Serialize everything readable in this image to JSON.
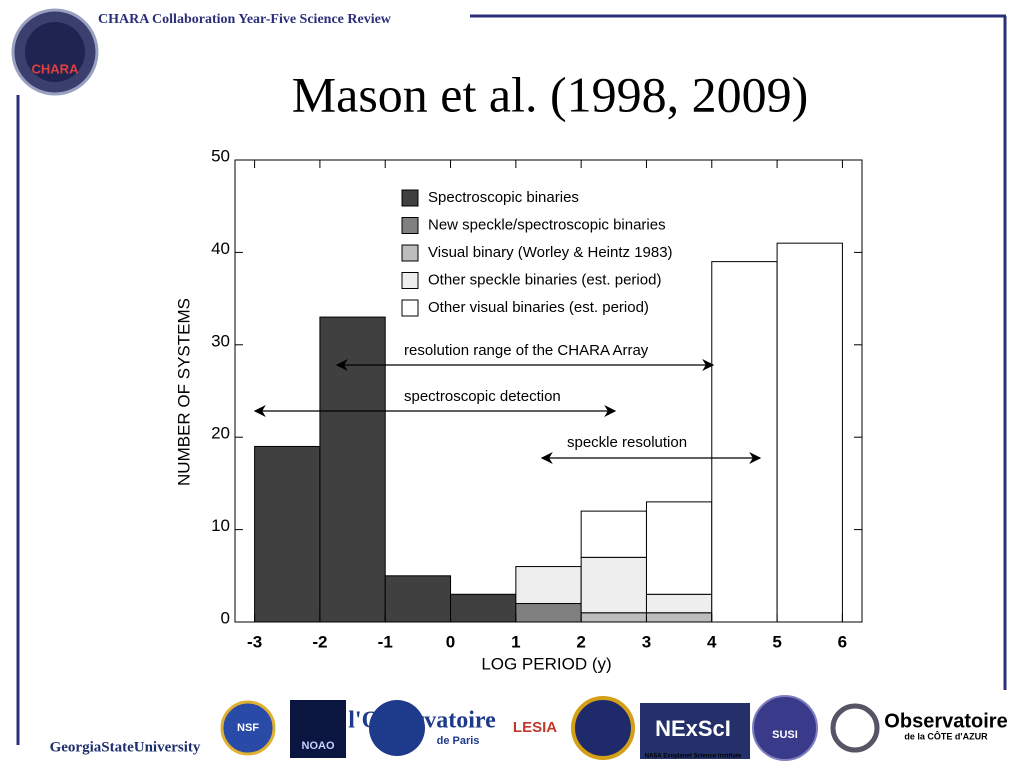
{
  "header": {
    "text": "CHARA Collaboration Year-Five Science Review",
    "logo_text": "CHARA"
  },
  "chart_data": {
    "type": "histogram",
    "title": "Mason et al. (1998, 2009)",
    "x_label": "LOG PERIOD (y)",
    "y_label": "NUMBER OF SYSTEMS",
    "bins": [
      -3,
      -2,
      -1,
      0,
      1,
      2,
      3,
      4,
      5,
      6
    ],
    "stacked": true,
    "series": [
      {
        "name": "Spectroscopic binaries",
        "color": "#404040",
        "values": [
          19,
          33,
          5,
          3,
          0,
          0,
          0,
          0,
          0
        ]
      },
      {
        "name": "New speckle/spectroscopic binaries",
        "color": "#808080",
        "values": [
          0,
          0,
          0,
          0,
          2,
          0,
          0,
          0,
          0
        ]
      },
      {
        "name": "Visual binary (Worley & Heintz 1983)",
        "color": "#bdbdbd",
        "values": [
          0,
          0,
          0,
          0,
          0,
          1,
          1,
          0,
          0
        ]
      },
      {
        "name": "Other speckle binaries (est. period)",
        "color": "#eeeeee",
        "values": [
          0,
          0,
          0,
          0,
          4,
          6,
          2,
          0,
          0
        ]
      },
      {
        "name": "Other visual binaries (est. period)",
        "color": "#ffffff",
        "values": [
          0,
          0,
          0,
          0,
          0,
          5,
          10,
          39,
          41
        ]
      }
    ],
    "xlim": [
      -3.3,
      6.3
    ],
    "xticks": [
      -3,
      -2,
      -1,
      0,
      1,
      2,
      3,
      4,
      5,
      6
    ],
    "ylim": [
      0,
      50
    ],
    "yticks": [
      0,
      10,
      20,
      30,
      40,
      50
    ],
    "annotations": [
      "resolution range of the CHARA Array",
      "spectroscopic detection",
      "speckle resolution"
    ]
  },
  "logos": [
    "GeorgiaStateUniversity",
    "NSF",
    "NOAO",
    "l'Observatoire",
    "de Paris",
    "LESIA",
    "NExScI",
    "NASA Exoplanet Science Institute",
    "SUSI",
    "Observatoire",
    "de la CÔTE d'AZUR"
  ]
}
